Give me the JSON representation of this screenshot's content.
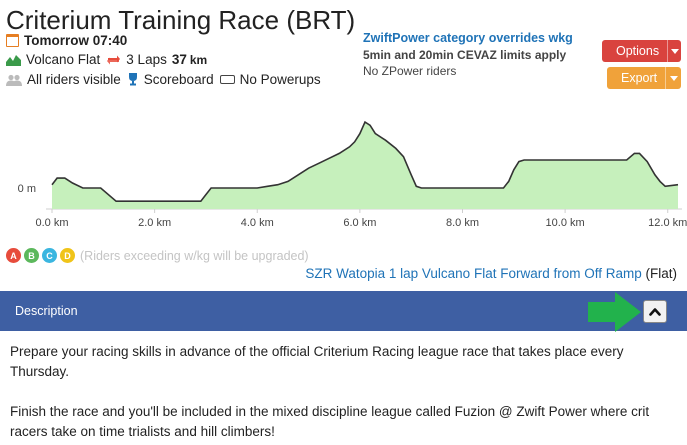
{
  "event": {
    "title": "Criterium Training Race (BRT)",
    "time": "Tomorrow 07:40",
    "route_name": "Volcano Flat",
    "laps": "3 Laps",
    "distance": "37",
    "distance_unit": "km",
    "visibility": "All riders visible",
    "scoreboard": "Scoreboard",
    "powerups": "No Powerups"
  },
  "overrides": {
    "heading": "ZwiftPower category overrides wkg",
    "line1": "5min and 20min CEVAZ limits apply",
    "line2": "No ZPower riders"
  },
  "buttons": {
    "options": "Options",
    "export": "Export"
  },
  "chart_data": {
    "type": "area",
    "title": "",
    "xlabel": "",
    "ylabel": "",
    "x_tick_labels": [
      "0.0 km",
      "2.0 km",
      "4.0 km",
      "6.0 km",
      "8.0 km",
      "10.0 km",
      "12.0 km"
    ],
    "y_tick_labels": [
      "0 m"
    ],
    "xlim": [
      0,
      12.2
    ],
    "ylim": [
      -12,
      50
    ],
    "x": [
      0,
      0.1,
      0.25,
      0.4,
      0.6,
      0.75,
      0.95,
      1.25,
      1.3,
      1.4,
      1.6,
      2.0,
      2.6,
      2.9,
      3.0,
      3.1,
      3.15,
      3.3,
      3.6,
      4.0,
      4.2,
      4.4,
      4.6,
      4.8,
      5.0,
      5.2,
      5.4,
      5.6,
      5.8,
      5.9,
      6.0,
      6.1,
      6.2,
      6.3,
      6.5,
      6.7,
      6.85,
      7.0,
      7.1,
      7.2,
      7.4,
      7.6,
      7.8,
      8.0,
      8.5,
      8.8,
      8.9,
      9.0,
      9.1,
      9.2,
      9.5,
      10.0,
      10.5,
      11.0,
      11.2,
      11.35,
      11.45,
      11.6,
      11.75,
      11.85,
      11.95,
      12.2
    ],
    "y": [
      2,
      6,
      6,
      3,
      0,
      0,
      0,
      -8,
      -8,
      -8,
      -8,
      -8,
      -8,
      -8,
      -4,
      0,
      0,
      0,
      0,
      0,
      1,
      2,
      4,
      8,
      12,
      15,
      18,
      21,
      25,
      28,
      33,
      40,
      38,
      33,
      29,
      24,
      19,
      8,
      1,
      0,
      0,
      0,
      0,
      0,
      0,
      0,
      4,
      11,
      16,
      17,
      17,
      17,
      17,
      17,
      17,
      21,
      21,
      16,
      8,
      4,
      1,
      2
    ]
  },
  "categories": {
    "items": [
      {
        "letter": "A",
        "color": "#e74c3c"
      },
      {
        "letter": "B",
        "color": "#5cb85c"
      },
      {
        "letter": "C",
        "color": "#3bb6e0"
      },
      {
        "letter": "D",
        "color": "#f0c419"
      }
    ],
    "note": "(Riders exceeding w/kg will be upgraded)"
  },
  "route": {
    "link": "SZR Watopia 1 lap Vulcano Flat Forward from Off Ramp",
    "tag": "(Flat)"
  },
  "description": {
    "label": "Description",
    "para1": "Prepare your racing skills in advance of the official Criterium Racing league race that takes place every Thursday.",
    "para2": "Finish the race and you'll be included in the mixed discipline league called Fuzion @ Zwift Power where crit racers take on time trialists and hill climbers!"
  },
  "colors": {
    "profile_fill": "#c6f0bc",
    "profile_line": "#333333",
    "desc_bar": "#3e5fa3",
    "link": "#1f73b7",
    "arrow": "#22b24c"
  }
}
